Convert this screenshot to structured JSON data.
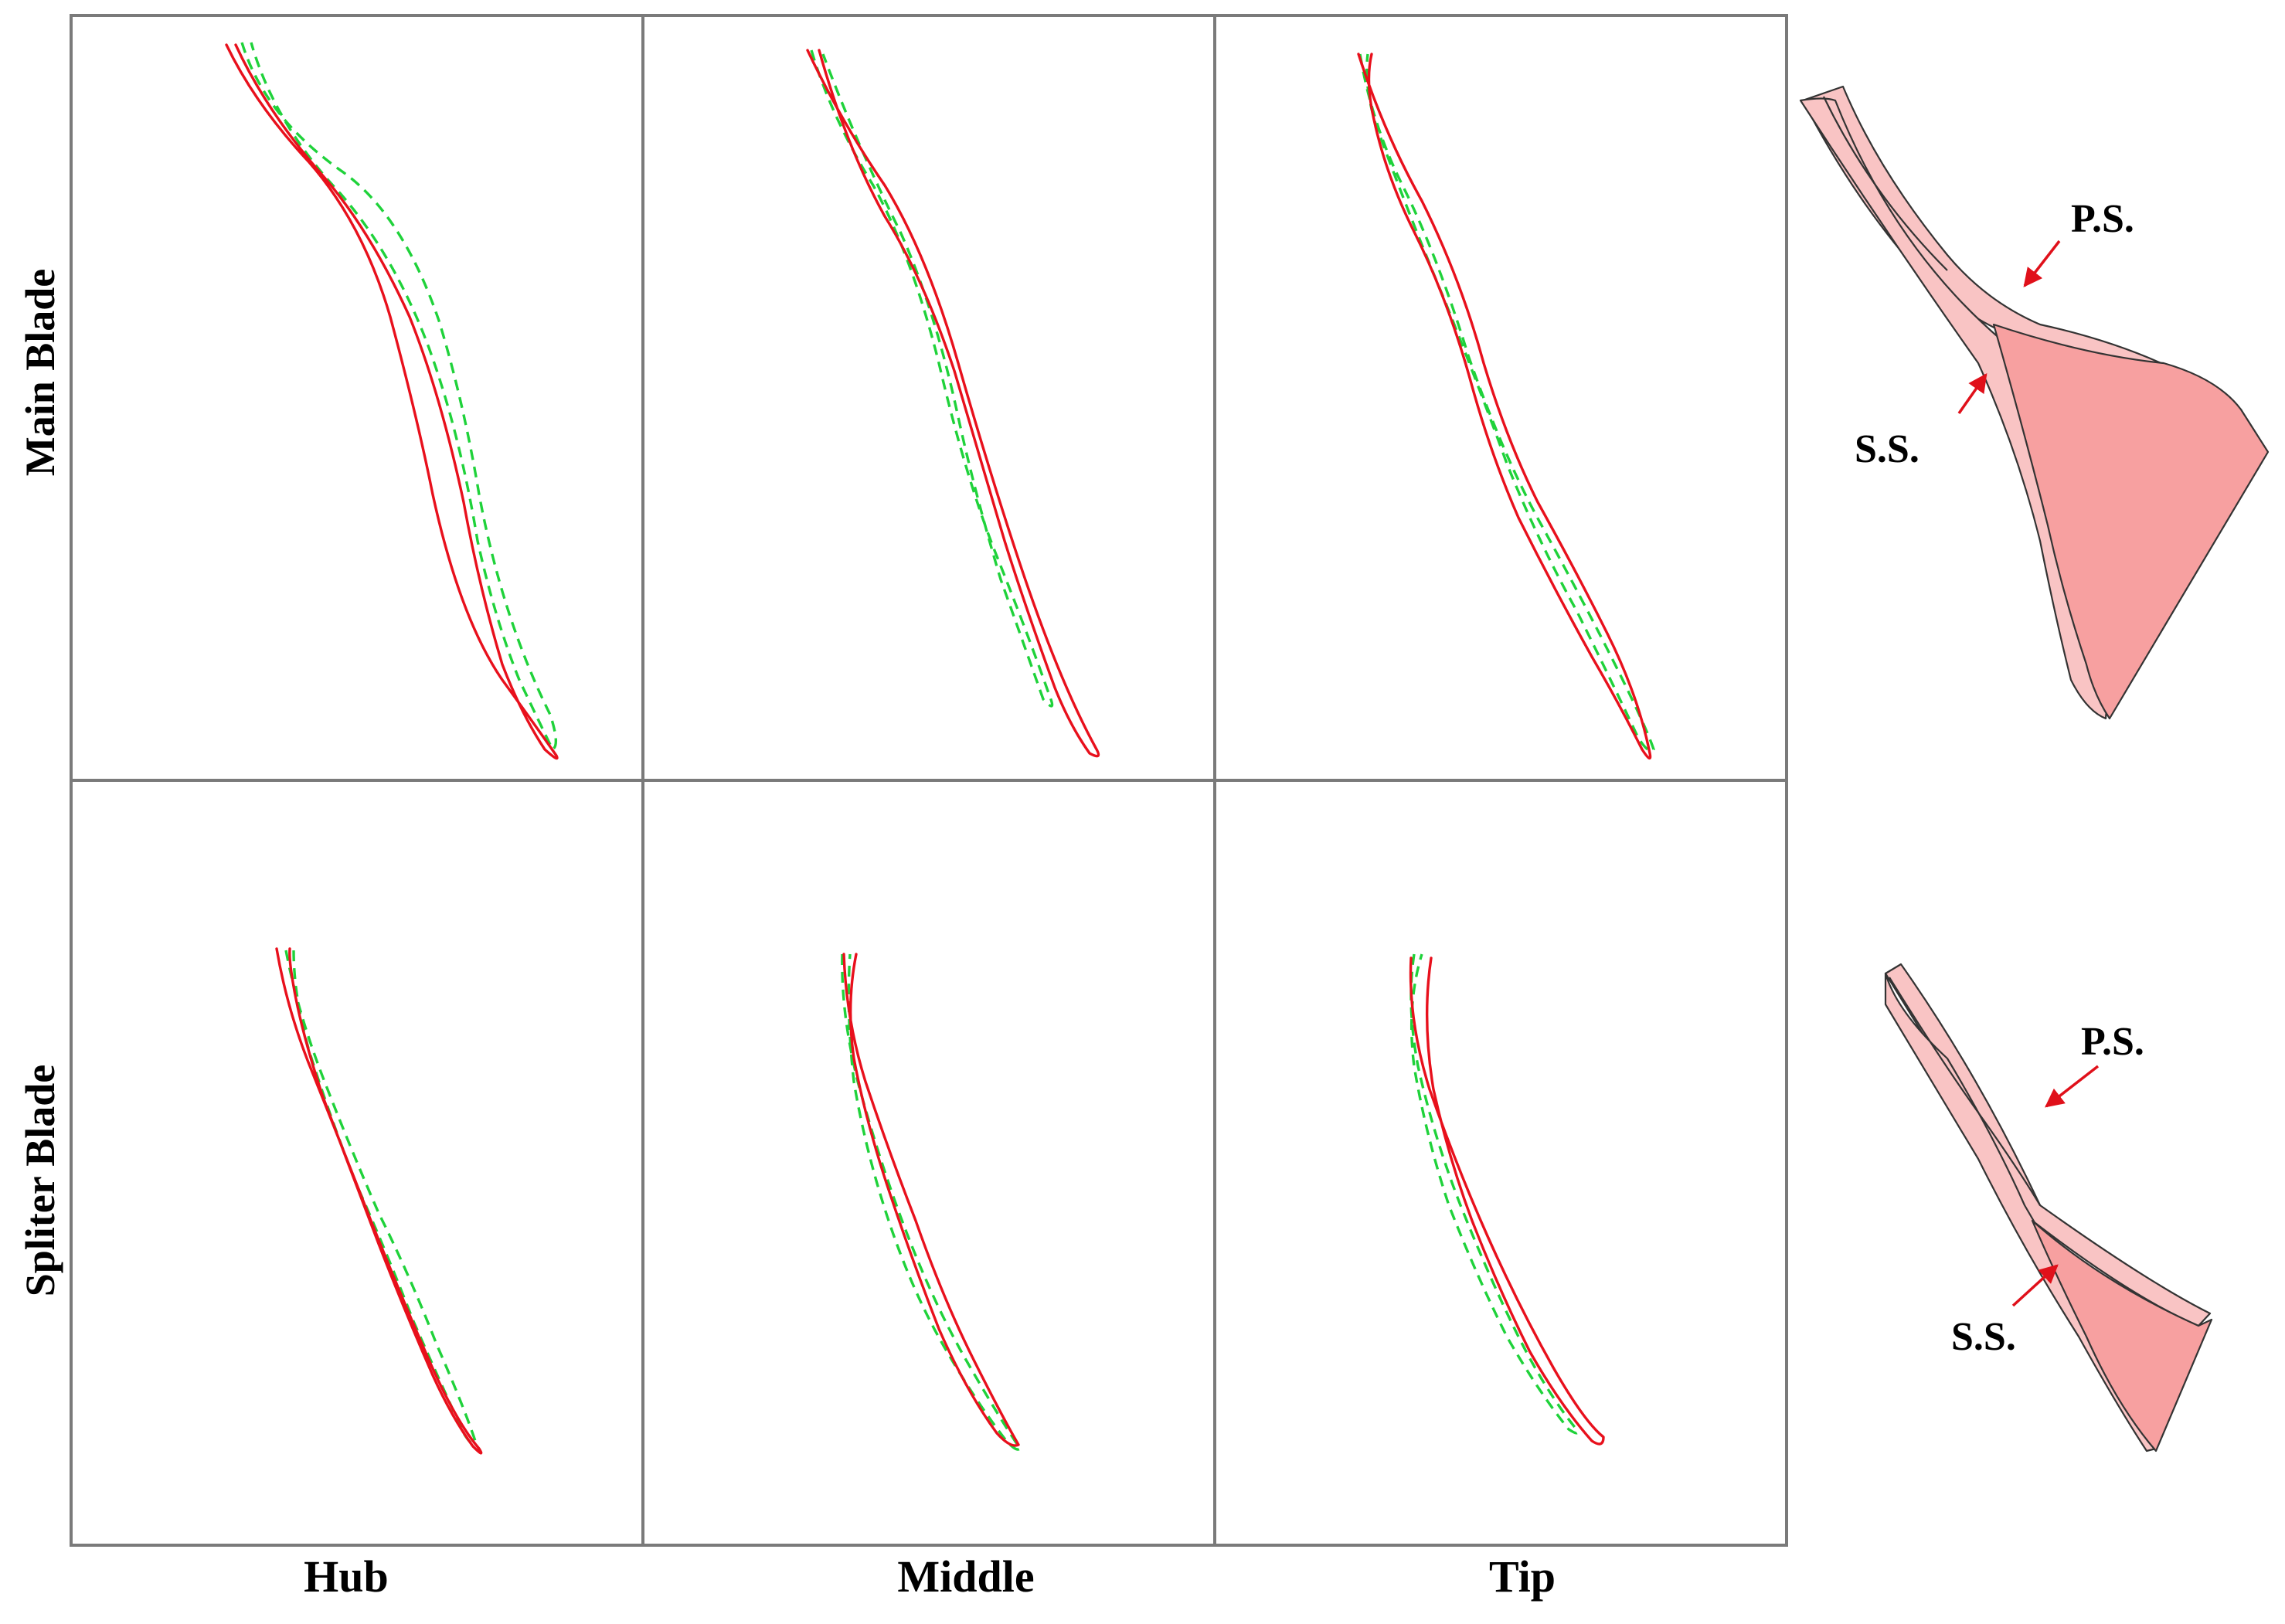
{
  "figure": {
    "rows": [
      "Main Blade",
      "Spliter Blade"
    ],
    "columns": [
      "Hub",
      "Middle",
      "Tip"
    ],
    "annotations": {
      "main": {
        "pressure_side": "P.S.",
        "suction_side": "S.S."
      },
      "splitter": {
        "pressure_side": "P.S.",
        "suction_side": "S.S."
      }
    }
  },
  "colors": {
    "profile_red": "#e8101c",
    "profile_green": "#1fd23a",
    "blade_light": "#f9c4c4",
    "blade_dark": "#f7a0a0",
    "arrow": "#e0101a",
    "grid": "#7a7a7a"
  }
}
